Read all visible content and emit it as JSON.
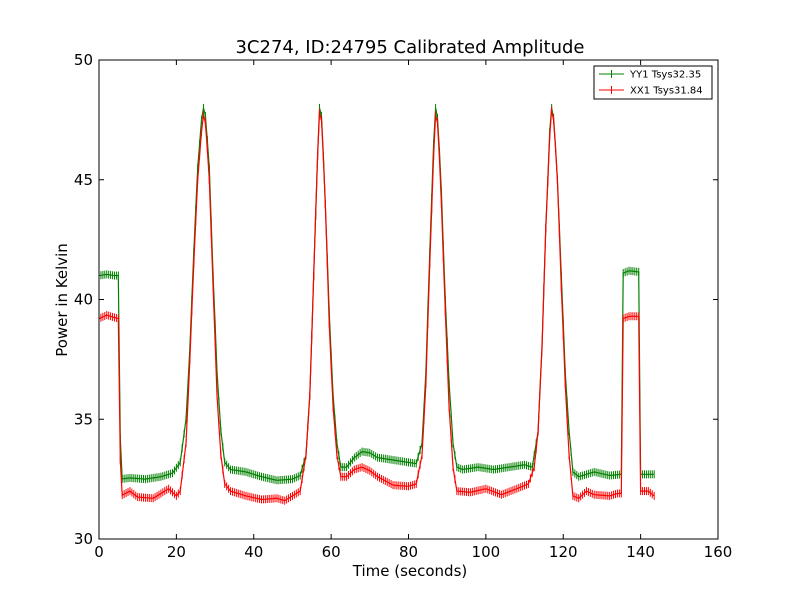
{
  "chart_data": {
    "type": "line",
    "title": "3C274, ID:24795 Calibrated Amplitude",
    "xlabel": "Time (seconds)",
    "ylabel": "Power in Kelvin",
    "xlim": [
      0,
      160
    ],
    "ylim": [
      30,
      50
    ],
    "xticks": [
      0,
      20,
      40,
      60,
      80,
      100,
      120,
      140,
      160
    ],
    "yticks": [
      30,
      35,
      40,
      45,
      50
    ],
    "grid": false,
    "legend_position": "top-right",
    "series": [
      {
        "name": "YY1 Tsys32.35",
        "color": "#008000",
        "points": [
          [
            0,
            41.0
          ],
          [
            2,
            41.05
          ],
          [
            4,
            41.0
          ],
          [
            5.1,
            41.0
          ],
          [
            5.6,
            32.5
          ],
          [
            8,
            32.55
          ],
          [
            12,
            32.5
          ],
          [
            16,
            32.6
          ],
          [
            19,
            32.75
          ],
          [
            21,
            33.2
          ],
          [
            22.5,
            35.0
          ],
          [
            23.5,
            38.0
          ],
          [
            24.5,
            42.0
          ],
          [
            25.5,
            45.5
          ],
          [
            26.5,
            47.5
          ],
          [
            27,
            48.0
          ],
          [
            27.6,
            47.6
          ],
          [
            28.5,
            45.5
          ],
          [
            29.5,
            41.0
          ],
          [
            30.5,
            37.0
          ],
          [
            31.5,
            34.5
          ],
          [
            32.5,
            33.2
          ],
          [
            34,
            32.9
          ],
          [
            38,
            32.8
          ],
          [
            42,
            32.6
          ],
          [
            46,
            32.45
          ],
          [
            50,
            32.5
          ],
          [
            52,
            32.65
          ],
          [
            53.5,
            33.5
          ],
          [
            54.5,
            36.0
          ],
          [
            55.5,
            41.0
          ],
          [
            56.5,
            46.0
          ],
          [
            57,
            48.0
          ],
          [
            57.6,
            47.6
          ],
          [
            58.5,
            44.0
          ],
          [
            59.5,
            39.5
          ],
          [
            60.5,
            36.0
          ],
          [
            61.5,
            34.0
          ],
          [
            62.5,
            33.0
          ],
          [
            64,
            33.0
          ],
          [
            66,
            33.4
          ],
          [
            68,
            33.65
          ],
          [
            70,
            33.6
          ],
          [
            72,
            33.4
          ],
          [
            76,
            33.3
          ],
          [
            80,
            33.2
          ],
          [
            82,
            33.15
          ],
          [
            83.5,
            34.0
          ],
          [
            84.5,
            37.0
          ],
          [
            85.5,
            42.0
          ],
          [
            86.5,
            46.5
          ],
          [
            87,
            48.0
          ],
          [
            87.6,
            47.5
          ],
          [
            88.5,
            44.5
          ],
          [
            89.5,
            40.0
          ],
          [
            90.5,
            36.5
          ],
          [
            91.5,
            34.0
          ],
          [
            92.5,
            33.0
          ],
          [
            94,
            32.9
          ],
          [
            98,
            33.0
          ],
          [
            102,
            32.9
          ],
          [
            106,
            33.0
          ],
          [
            110,
            33.1
          ],
          [
            112,
            33.0
          ],
          [
            113.5,
            34.5
          ],
          [
            114.5,
            38.0
          ],
          [
            115.5,
            43.0
          ],
          [
            116.5,
            47.0
          ],
          [
            117,
            48.0
          ],
          [
            117.6,
            47.5
          ],
          [
            118.5,
            45.0
          ],
          [
            119.5,
            41.0
          ],
          [
            120.5,
            37.0
          ],
          [
            121.5,
            34.5
          ],
          [
            122.5,
            32.8
          ],
          [
            124,
            32.6
          ],
          [
            128,
            32.8
          ],
          [
            132,
            32.65
          ],
          [
            135,
            32.7
          ],
          [
            135.4,
            41.1
          ],
          [
            137,
            41.2
          ],
          [
            139.5,
            41.15
          ],
          [
            139.8,
            32.7
          ],
          [
            142,
            32.7
          ],
          [
            143.5,
            32.7
          ]
        ]
      },
      {
        "name": "XX1 Tsys31.84",
        "color": "#ff0000",
        "points": [
          [
            0,
            39.2
          ],
          [
            2,
            39.35
          ],
          [
            4,
            39.25
          ],
          [
            5.1,
            39.2
          ],
          [
            5.6,
            31.8
          ],
          [
            8,
            32.0
          ],
          [
            10,
            31.75
          ],
          [
            14,
            31.7
          ],
          [
            18,
            32.1
          ],
          [
            20,
            31.8
          ],
          [
            21,
            32.0
          ],
          [
            22.5,
            34.0
          ],
          [
            23.5,
            37.5
          ],
          [
            24.5,
            41.5
          ],
          [
            25.5,
            45.0
          ],
          [
            26.5,
            47.0
          ],
          [
            27,
            47.7
          ],
          [
            27.6,
            47.3
          ],
          [
            28.5,
            45.0
          ],
          [
            29.5,
            40.5
          ],
          [
            30.5,
            36.0
          ],
          [
            31.5,
            33.5
          ],
          [
            32.5,
            32.3
          ],
          [
            34,
            32.0
          ],
          [
            38,
            31.8
          ],
          [
            42,
            31.65
          ],
          [
            46,
            31.7
          ],
          [
            48,
            31.6
          ],
          [
            50,
            31.8
          ],
          [
            52,
            32.0
          ],
          [
            53.5,
            33.5
          ],
          [
            54.5,
            36.0
          ],
          [
            55.5,
            41.0
          ],
          [
            56.5,
            46.0
          ],
          [
            57,
            47.8
          ],
          [
            57.6,
            47.4
          ],
          [
            58.5,
            44.0
          ],
          [
            59.5,
            39.0
          ],
          [
            60.5,
            35.5
          ],
          [
            61.5,
            33.5
          ],
          [
            62.5,
            32.6
          ],
          [
            64,
            32.6
          ],
          [
            66,
            32.9
          ],
          [
            68,
            33.0
          ],
          [
            70,
            32.85
          ],
          [
            72,
            32.6
          ],
          [
            76,
            32.25
          ],
          [
            80,
            32.2
          ],
          [
            82,
            32.3
          ],
          [
            83.5,
            33.5
          ],
          [
            84.5,
            36.5
          ],
          [
            85.5,
            41.5
          ],
          [
            86.5,
            46.0
          ],
          [
            87,
            47.7
          ],
          [
            87.6,
            47.3
          ],
          [
            88.5,
            44.0
          ],
          [
            89.5,
            39.5
          ],
          [
            90.5,
            35.5
          ],
          [
            91.5,
            33.0
          ],
          [
            92.5,
            32.0
          ],
          [
            96,
            31.95
          ],
          [
            100,
            32.1
          ],
          [
            104,
            31.85
          ],
          [
            108,
            32.1
          ],
          [
            111,
            32.3
          ],
          [
            112.5,
            33.0
          ],
          [
            113.5,
            34.5
          ],
          [
            114.5,
            38.0
          ],
          [
            115.5,
            43.0
          ],
          [
            116.5,
            46.8
          ],
          [
            117,
            47.9
          ],
          [
            117.6,
            47.4
          ],
          [
            118.5,
            45.0
          ],
          [
            119.5,
            40.5
          ],
          [
            120.5,
            36.5
          ],
          [
            121.5,
            33.5
          ],
          [
            122.5,
            31.8
          ],
          [
            124,
            31.7
          ],
          [
            126,
            32.0
          ],
          [
            128,
            31.85
          ],
          [
            132,
            31.8
          ],
          [
            134,
            31.9
          ],
          [
            135,
            31.9
          ],
          [
            135.4,
            39.2
          ],
          [
            137,
            39.3
          ],
          [
            139.5,
            39.3
          ],
          [
            139.8,
            32.0
          ],
          [
            142,
            32.0
          ],
          [
            143.5,
            31.8
          ]
        ]
      }
    ]
  }
}
